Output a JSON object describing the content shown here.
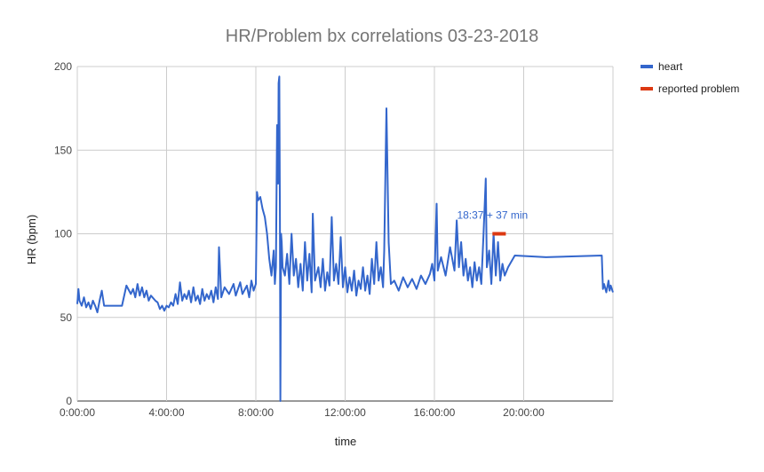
{
  "chart_data": {
    "type": "line",
    "title": "HR/Problem bx correlations 03-23-2018",
    "xlabel": "time",
    "ylabel": "HR (bpm)",
    "x_unit": "hours",
    "xlim": [
      0,
      24
    ],
    "ylim": [
      0,
      200
    ],
    "x_ticks": [
      {
        "value": 0,
        "label": "0:00:00"
      },
      {
        "value": 4,
        "label": "4:00:00"
      },
      {
        "value": 8,
        "label": "8:00:00"
      },
      {
        "value": 12,
        "label": "12:00:00"
      },
      {
        "value": 16,
        "label": "16:00:00"
      },
      {
        "value": 20,
        "label": "20:00:00"
      }
    ],
    "y_ticks": [
      {
        "value": 0,
        "label": "0"
      },
      {
        "value": 50,
        "label": "50"
      },
      {
        "value": 100,
        "label": "100"
      },
      {
        "value": 150,
        "label": "150"
      },
      {
        "value": 200,
        "label": "200"
      }
    ],
    "grid": true,
    "legend_position": "right",
    "series": [
      {
        "name": "heart",
        "color": "#3366cc",
        "points": [
          [
            0.0,
            58
          ],
          [
            0.05,
            67
          ],
          [
            0.1,
            60
          ],
          [
            0.2,
            57
          ],
          [
            0.3,
            62
          ],
          [
            0.4,
            56
          ],
          [
            0.5,
            59
          ],
          [
            0.6,
            55
          ],
          [
            0.7,
            60
          ],
          [
            0.8,
            57
          ],
          [
            0.9,
            53
          ],
          [
            1.0,
            60
          ],
          [
            1.1,
            66
          ],
          [
            1.2,
            57
          ],
          [
            2.0,
            57
          ],
          [
            2.2,
            69
          ],
          [
            2.4,
            64
          ],
          [
            2.5,
            67
          ],
          [
            2.6,
            62
          ],
          [
            2.7,
            70
          ],
          [
            2.8,
            63
          ],
          [
            2.9,
            68
          ],
          [
            3.0,
            62
          ],
          [
            3.1,
            66
          ],
          [
            3.2,
            60
          ],
          [
            3.3,
            63
          ],
          [
            3.5,
            60
          ],
          [
            3.6,
            59
          ],
          [
            3.7,
            55
          ],
          [
            3.8,
            57
          ],
          [
            3.9,
            54
          ],
          [
            4.0,
            57
          ],
          [
            4.1,
            56
          ],
          [
            4.2,
            59
          ],
          [
            4.3,
            57
          ],
          [
            4.4,
            64
          ],
          [
            4.5,
            58
          ],
          [
            4.6,
            71
          ],
          [
            4.7,
            60
          ],
          [
            4.8,
            64
          ],
          [
            4.9,
            61
          ],
          [
            5.0,
            66
          ],
          [
            5.1,
            59
          ],
          [
            5.2,
            68
          ],
          [
            5.3,
            60
          ],
          [
            5.4,
            63
          ],
          [
            5.5,
            58
          ],
          [
            5.6,
            67
          ],
          [
            5.7,
            60
          ],
          [
            5.8,
            64
          ],
          [
            5.9,
            61
          ],
          [
            6.0,
            66
          ],
          [
            6.1,
            59
          ],
          [
            6.2,
            68
          ],
          [
            6.3,
            61
          ],
          [
            6.35,
            92
          ],
          [
            6.45,
            62
          ],
          [
            6.6,
            68
          ],
          [
            6.8,
            64
          ],
          [
            7.0,
            70
          ],
          [
            7.1,
            63
          ],
          [
            7.3,
            71
          ],
          [
            7.4,
            64
          ],
          [
            7.6,
            69
          ],
          [
            7.7,
            62
          ],
          [
            7.8,
            72
          ],
          [
            7.9,
            66
          ],
          [
            8.0,
            70
          ],
          [
            8.05,
            125
          ],
          [
            8.1,
            120
          ],
          [
            8.2,
            122
          ],
          [
            8.3,
            115
          ],
          [
            8.4,
            110
          ],
          [
            8.5,
            100
          ],
          [
            8.6,
            85
          ],
          [
            8.7,
            75
          ],
          [
            8.8,
            90
          ],
          [
            8.85,
            70
          ],
          [
            8.9,
            80
          ],
          [
            8.95,
            165
          ],
          [
            9.0,
            130
          ],
          [
            9.02,
            190
          ],
          [
            9.05,
            194
          ],
          [
            9.08,
            110
          ],
          [
            9.1,
            0
          ],
          [
            9.13,
            100
          ],
          [
            9.16,
            95
          ],
          [
            9.2,
            80
          ],
          [
            9.3,
            75
          ],
          [
            9.4,
            88
          ],
          [
            9.5,
            70
          ],
          [
            9.6,
            100
          ],
          [
            9.7,
            75
          ],
          [
            9.8,
            85
          ],
          [
            9.9,
            68
          ],
          [
            10.0,
            82
          ],
          [
            10.1,
            66
          ],
          [
            10.2,
            95
          ],
          [
            10.3,
            72
          ],
          [
            10.4,
            88
          ],
          [
            10.5,
            65
          ],
          [
            10.55,
            112
          ],
          [
            10.65,
            72
          ],
          [
            10.8,
            80
          ],
          [
            10.9,
            68
          ],
          [
            11.0,
            85
          ],
          [
            11.1,
            66
          ],
          [
            11.2,
            77
          ],
          [
            11.3,
            69
          ],
          [
            11.4,
            110
          ],
          [
            11.5,
            72
          ],
          [
            11.6,
            82
          ],
          [
            11.7,
            70
          ],
          [
            11.8,
            98
          ],
          [
            11.9,
            68
          ],
          [
            12.0,
            80
          ],
          [
            12.1,
            65
          ],
          [
            12.2,
            74
          ],
          [
            12.3,
            66
          ],
          [
            12.4,
            78
          ],
          [
            12.5,
            63
          ],
          [
            12.6,
            72
          ],
          [
            12.7,
            67
          ],
          [
            12.8,
            80
          ],
          [
            12.9,
            66
          ],
          [
            13.0,
            75
          ],
          [
            13.1,
            64
          ],
          [
            13.2,
            85
          ],
          [
            13.3,
            70
          ],
          [
            13.4,
            95
          ],
          [
            13.5,
            72
          ],
          [
            13.6,
            80
          ],
          [
            13.7,
            68
          ],
          [
            13.75,
            90
          ],
          [
            13.85,
            175
          ],
          [
            13.95,
            95
          ],
          [
            14.05,
            70
          ],
          [
            14.2,
            72
          ],
          [
            14.4,
            66
          ],
          [
            14.6,
            74
          ],
          [
            14.8,
            68
          ],
          [
            15.0,
            73
          ],
          [
            15.2,
            67
          ],
          [
            15.4,
            75
          ],
          [
            15.6,
            70
          ],
          [
            15.8,
            76
          ],
          [
            15.9,
            82
          ],
          [
            16.0,
            72
          ],
          [
            16.1,
            118
          ],
          [
            16.15,
            78
          ],
          [
            16.3,
            86
          ],
          [
            16.5,
            75
          ],
          [
            16.7,
            92
          ],
          [
            16.9,
            78
          ],
          [
            17.0,
            108
          ],
          [
            17.1,
            80
          ],
          [
            17.2,
            95
          ],
          [
            17.3,
            75
          ],
          [
            17.4,
            85
          ],
          [
            17.5,
            72
          ],
          [
            17.6,
            80
          ],
          [
            17.7,
            68
          ],
          [
            17.8,
            83
          ],
          [
            17.9,
            72
          ],
          [
            18.0,
            80
          ],
          [
            18.1,
            70
          ],
          [
            18.2,
            100
          ],
          [
            18.3,
            133
          ],
          [
            18.35,
            80
          ],
          [
            18.45,
            90
          ],
          [
            18.55,
            70
          ],
          [
            18.65,
            100
          ],
          [
            18.75,
            75
          ],
          [
            18.85,
            95
          ],
          [
            18.95,
            72
          ],
          [
            19.05,
            82
          ],
          [
            19.15,
            75
          ],
          [
            19.3,
            80
          ],
          [
            19.6,
            87
          ],
          [
            21.0,
            86
          ],
          [
            23.5,
            87
          ],
          [
            23.55,
            67
          ],
          [
            23.6,
            70
          ],
          [
            23.7,
            65
          ],
          [
            23.8,
            72
          ],
          [
            23.85,
            66
          ],
          [
            23.9,
            69
          ],
          [
            24.0,
            65
          ]
        ]
      },
      {
        "name": "reported problem",
        "color": "#dc3912",
        "points": [
          [
            18.6,
            100
          ],
          [
            19.2,
            100
          ]
        ]
      }
    ],
    "annotations": [
      {
        "text": "18:37 + 37 min",
        "x": 18.6,
        "y": 100
      }
    ]
  }
}
